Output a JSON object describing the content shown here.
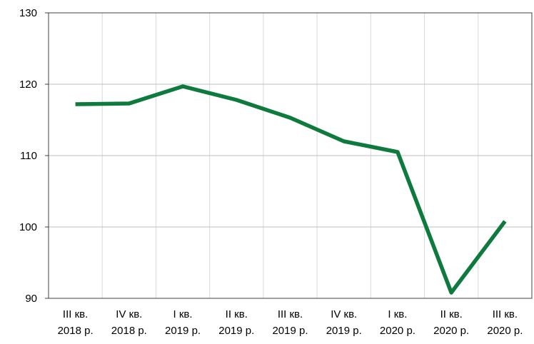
{
  "chart_data": {
    "type": "line",
    "categories": [
      "III кв.\n2018 р.",
      "IV кв.\n2018 р.",
      "I кв.\n2019 р.",
      "II кв.\n2019 р.",
      "III кв.\n2019 р.",
      "IV кв.\n2019 р.",
      "I кв.\n2020 р.",
      "II кв.\n2020 р.",
      "III кв.\n2020 р."
    ],
    "series": [
      {
        "color": "#0e7a3e",
        "values": [
          117.2,
          117.3,
          119.7,
          117.8,
          115.3,
          112.0,
          110.5,
          90.8,
          100.8
        ]
      }
    ],
    "ylim": [
      90,
      130
    ],
    "yticks": [
      90,
      100,
      110,
      120,
      130
    ],
    "grid": true
  }
}
